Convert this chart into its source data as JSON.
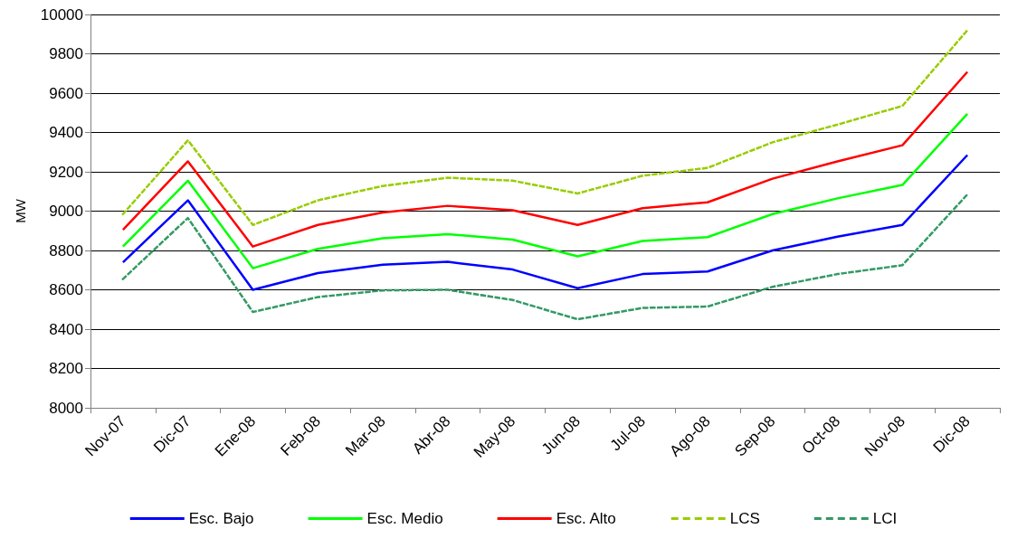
{
  "chart_data": {
    "type": "line",
    "ylabel": "MW",
    "categories": [
      "Nov-07",
      "Dic-07",
      "Ene-08",
      "Feb-08",
      "Mar-08",
      "Abr-08",
      "May-08",
      "Jun-08",
      "Jul-08",
      "Ago-08",
      "Sep-08",
      "Oct-08",
      "Nov-08",
      "Dic-08"
    ],
    "ylim": [
      8000,
      10000
    ],
    "yticks": [
      8000,
      8200,
      8400,
      8600,
      8800,
      9000,
      9200,
      9400,
      9600,
      9800,
      10000
    ],
    "grid": "y",
    "legend": "bottom",
    "marker": "none",
    "series": [
      {
        "name": "Esc. Bajo",
        "color": "#0000ff",
        "line_style": "solid",
        "values": [
          8740,
          9055,
          8600,
          8685,
          8728,
          8742,
          8703,
          8608,
          8680,
          8693,
          8800,
          8870,
          8930,
          9285
        ]
      },
      {
        "name": "Esc. Medio",
        "color": "#00ff00",
        "line_style": "solid",
        "values": [
          8820,
          9155,
          8710,
          8808,
          8862,
          8883,
          8855,
          8770,
          8848,
          8868,
          8985,
          9065,
          9133,
          9495
        ]
      },
      {
        "name": "Esc. Alto",
        "color": "#ff0000",
        "line_style": "solid",
        "values": [
          8905,
          9253,
          8820,
          8930,
          8993,
          9027,
          9005,
          8930,
          9015,
          9045,
          9165,
          9253,
          9335,
          9708
        ]
      },
      {
        "name": "LCS",
        "color": "#99cc00",
        "line_style": "dashed",
        "values": [
          8985,
          9360,
          8930,
          9055,
          9128,
          9170,
          9155,
          9090,
          9180,
          9220,
          9350,
          9440,
          9535,
          9920
        ]
      },
      {
        "name": "LCI",
        "color": "#339966",
        "line_style": "dashed",
        "values": [
          8655,
          8965,
          8487,
          8563,
          8597,
          8600,
          8548,
          8450,
          8508,
          8515,
          8615,
          8680,
          8725,
          9085
        ]
      }
    ]
  }
}
